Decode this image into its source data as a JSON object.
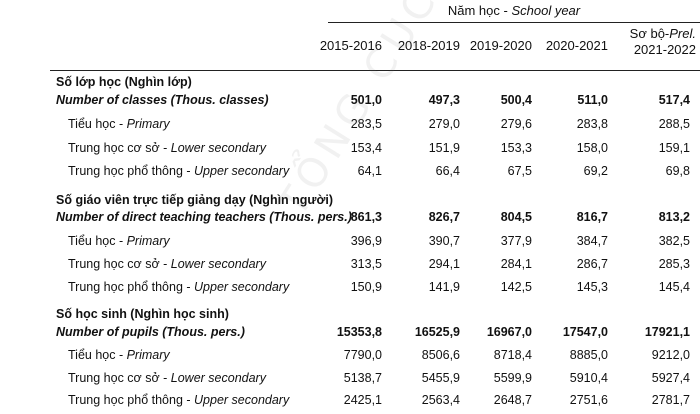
{
  "header": {
    "school_year_vi": "Năm học - ",
    "school_year_en": "School year",
    "years": [
      "2015-2016",
      "2018-2019",
      "2019-2020",
      "2020-2021"
    ],
    "prelim_line1_vi": "Sơ bộ-",
    "prelim_line1_en": "Prel.",
    "prelim_line2": "2021-2022"
  },
  "sections": [
    {
      "title_vi": "Số lớp học (Nghìn lớp)",
      "title_en": "Number of classes (Thous. classes)",
      "total": [
        "501,0",
        "497,3",
        "500,4",
        "511,0",
        "517,4"
      ],
      "rows": [
        {
          "vi": "Tiểu học - ",
          "en": "Primary",
          "values": [
            "283,5",
            "279,0",
            "279,6",
            "283,8",
            "288,5"
          ]
        },
        {
          "vi": "Trung học cơ sở - ",
          "en": "Lower secondary",
          "values": [
            "153,4",
            "151,9",
            "153,3",
            "158,0",
            "159,1"
          ]
        },
        {
          "vi": "Trung học phổ thông - ",
          "en": "Upper secondary",
          "values": [
            "64,1",
            "66,4",
            "67,5",
            "69,2",
            "69,8"
          ]
        }
      ]
    },
    {
      "title_vi": "Số giáo viên trực tiếp giảng dạy (Nghìn người)",
      "title_en": "Number of direct teaching teachers (Thous. pers.)",
      "total": [
        "861,3",
        "826,7",
        "804,5",
        "816,7",
        "813,2"
      ],
      "rows": [
        {
          "vi": "Tiểu học - ",
          "en": "Primary",
          "values": [
            "396,9",
            "390,7",
            "377,9",
            "384,7",
            "382,5"
          ]
        },
        {
          "vi": "Trung học cơ sở - ",
          "en": "Lower secondary",
          "values": [
            "313,5",
            "294,1",
            "284,1",
            "286,7",
            "285,3"
          ]
        },
        {
          "vi": "Trung học phổ thông - ",
          "en": "Upper secondary",
          "values": [
            "150,9",
            "141,9",
            "142,5",
            "145,3",
            "145,4"
          ]
        }
      ]
    },
    {
      "title_vi": "Số học sinh (Nghìn học sinh)",
      "title_en": "Number of pupils (Thous. pers.)",
      "total": [
        "15353,8",
        "16525,9",
        "16967,0",
        "17547,0",
        "17921,1"
      ],
      "rows": [
        {
          "vi": "Tiểu học - ",
          "en": "Primary",
          "values": [
            "7790,0",
            "8506,6",
            "8718,4",
            "8885,0",
            "9212,0"
          ]
        },
        {
          "vi": "Trung học cơ sở - ",
          "en": "Lower secondary",
          "values": [
            "5138,7",
            "5455,9",
            "5599,9",
            "5910,4",
            "5927,4"
          ]
        },
        {
          "vi": "Trung học phổ thông - ",
          "en": "Upper secondary",
          "values": [
            "2425,1",
            "2563,4",
            "2648,7",
            "2751,6",
            "2781,7"
          ]
        }
      ]
    }
  ],
  "watermark": "TỔNG CỤC THỐNG KÊ"
}
